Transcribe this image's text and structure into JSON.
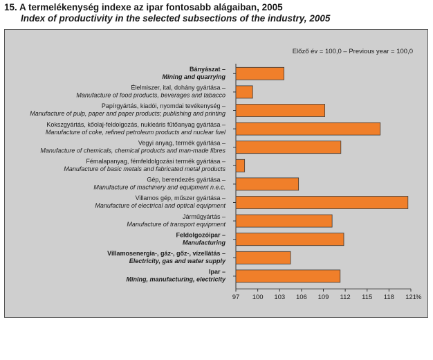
{
  "title_hu": "15. A termelékenység indexe az ipar fontosabb alágaiban, 2005",
  "title_en": "Index of productivity in the selected subsections of the industry, 2005",
  "chart_data": {
    "type": "bar",
    "orientation": "horizontal",
    "note": "Előző év = 100,0 – Previous year = 100,0",
    "categories": [
      {
        "hu": "Bányászat –",
        "en": "Mining and quarrying",
        "bold": true
      },
      {
        "hu": "Élelmiszer, ital, dohány gyártása –",
        "en": "Manufacture of food products, beverages and tabacco",
        "bold": false
      },
      {
        "hu": "Papírgyártás, kiadói, nyomdai tevékenység –",
        "en": "Manufacture of pulp, paper and paper products; publishing and printing",
        "bold": false
      },
      {
        "hu": "Kokszgyártás, kőolaj-feldolgozás, nukleáris fűtőanyag gyártása –",
        "en": "Manufacture of coke, refined petroleum products and nuclear fuel",
        "bold": false
      },
      {
        "hu": "Vegyi anyag, termék gyártása –",
        "en": "Manufacture of chemicals, chemical products and man-made fibres",
        "bold": false
      },
      {
        "hu": "Fémalapanyag, fémfeldolgozási termék gyártása –",
        "en": "Manufacture of basic metals and fabricated metal products",
        "bold": false
      },
      {
        "hu": "Gép, berendezés gyártása –",
        "en": "Manufacture of machinery and equipment n.e.c.",
        "bold": false
      },
      {
        "hu": "Villamos gép, műszer gyártása –",
        "en": "Manufacture of electrical and optical equipment",
        "bold": false
      },
      {
        "hu": "Járműgyártás –",
        "en": "Manufacture of transport equipment",
        "bold": false
      },
      {
        "hu": "Feldolgozóipar –",
        "en": "Manufacturing",
        "bold": true
      },
      {
        "hu": "Villamosenergia-, gáz-, gőz-, vízellátás –",
        "en": "Electricity, gas and water supply",
        "bold": true
      },
      {
        "hu": "Ipar –",
        "en": "Mining, manufacturing, electricity",
        "bold": true
      }
    ],
    "values": [
      103.6,
      99.3,
      109.2,
      116.8,
      111.4,
      98.2,
      105.6,
      120.6,
      110.2,
      111.8,
      104.5,
      111.3
    ],
    "xlim": [
      97,
      121
    ],
    "xticks": [
      "97",
      "100",
      "103",
      "106",
      "109",
      "112",
      "115",
      "118",
      "121"
    ],
    "xtick_values": [
      97,
      100,
      103,
      106,
      109,
      112,
      115,
      118,
      121
    ],
    "unit": "%",
    "bar_color": "#f07f2a",
    "bar_border": "#3a3a3a",
    "grid": false
  }
}
